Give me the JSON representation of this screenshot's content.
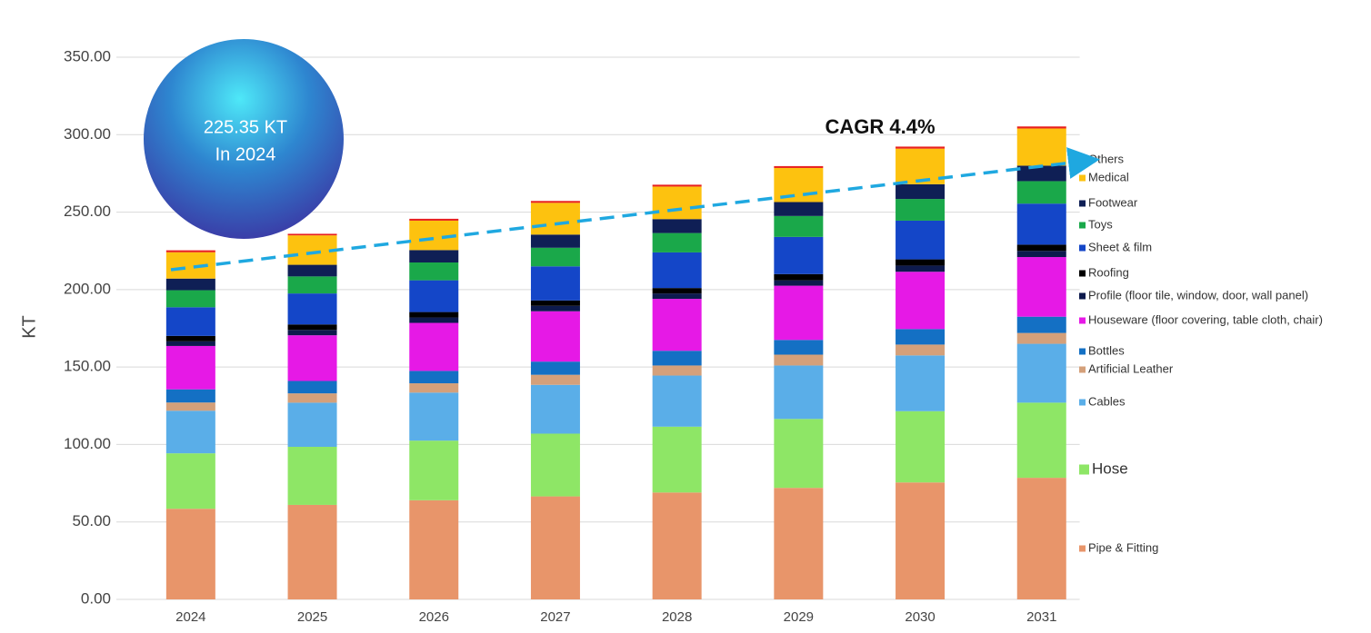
{
  "chart_data": {
    "type": "stacked_bar",
    "y_label": "KT",
    "annotations": [
      "225.35 KT",
      "In 2024",
      "CAGR 4.4%"
    ],
    "categories": [
      "2024",
      "2025",
      "2026",
      "2027",
      "2028",
      "2029",
      "2030",
      "2031"
    ],
    "series": [
      {
        "name": "Pipe & Fitting",
        "color": "#e8956a",
        "values": [
          58.5,
          61,
          64,
          66.5,
          69,
          72,
          75.5,
          78.5
        ]
      },
      {
        "name": "Hose",
        "color": "#8ee666",
        "values": [
          35.8,
          37.5,
          38.5,
          40.5,
          42.5,
          44.5,
          46,
          48.5
        ]
      },
      {
        "name": "Cables",
        "color": "#5aaee8",
        "values": [
          27.5,
          28.5,
          31,
          31.5,
          33,
          34.5,
          36,
          38
        ]
      },
      {
        "name": "Artificial Leather",
        "color": "#d4a07a",
        "values": [
          5.3,
          6,
          6,
          6.5,
          6.5,
          7,
          7,
          7
        ]
      },
      {
        "name": "Bottles",
        "color": "#1470c4",
        "values": [
          8.5,
          8,
          8,
          8.5,
          9.5,
          9.5,
          10,
          10.5
        ]
      },
      {
        "name": "Houseware (floor covering, table cloth, chair)",
        "color": "#e619e6",
        "values": [
          28,
          29.5,
          31,
          32.5,
          33.5,
          35,
          37,
          38.5
        ]
      },
      {
        "name": "Profile (floor tile, window, door, wall panel)",
        "color": "#0d1a4d",
        "values": [
          3,
          3.5,
          3.5,
          3.5,
          3.5,
          3.5,
          4,
          4
        ]
      },
      {
        "name": "Roofing",
        "color": "#000000",
        "values": [
          3.5,
          3.5,
          3.5,
          3.5,
          3.5,
          4,
          4,
          4
        ]
      },
      {
        "name": "Sheet & film",
        "color": "#1446c8",
        "values": [
          18.5,
          20,
          20.5,
          22,
          23,
          24,
          25,
          26.5
        ]
      },
      {
        "name": "Toys",
        "color": "#1aa84a",
        "values": [
          11,
          11,
          11.5,
          12,
          12.5,
          13.5,
          14,
          14.5
        ]
      },
      {
        "name": "Footwear",
        "color": "#0f1f55",
        "values": [
          7.5,
          7.5,
          8,
          8.5,
          9,
          9,
          9.5,
          10
        ]
      },
      {
        "name": "Medical",
        "color": "#fdc20f",
        "values": [
          17,
          19,
          19,
          20.5,
          21,
          22,
          23,
          24
        ]
      },
      {
        "name": "Others",
        "color": "#e8201e",
        "values": [
          1.25,
          1,
          1.2,
          1.2,
          1.2,
          1.2,
          1.3,
          1.3
        ]
      }
    ],
    "ylim": [
      0,
      350
    ],
    "yticks": [
      {
        "value": 0,
        "label": "0.00"
      },
      {
        "value": 50,
        "label": "50.00"
      },
      {
        "value": 100,
        "label": "100.00"
      },
      {
        "value": 150,
        "label": "150.00"
      },
      {
        "value": 200,
        "label": "200.00"
      },
      {
        "value": 250,
        "label": "250.00"
      },
      {
        "value": 300,
        "label": "300.00"
      },
      {
        "value": 350,
        "label": "350.00"
      }
    ],
    "grid": true
  }
}
